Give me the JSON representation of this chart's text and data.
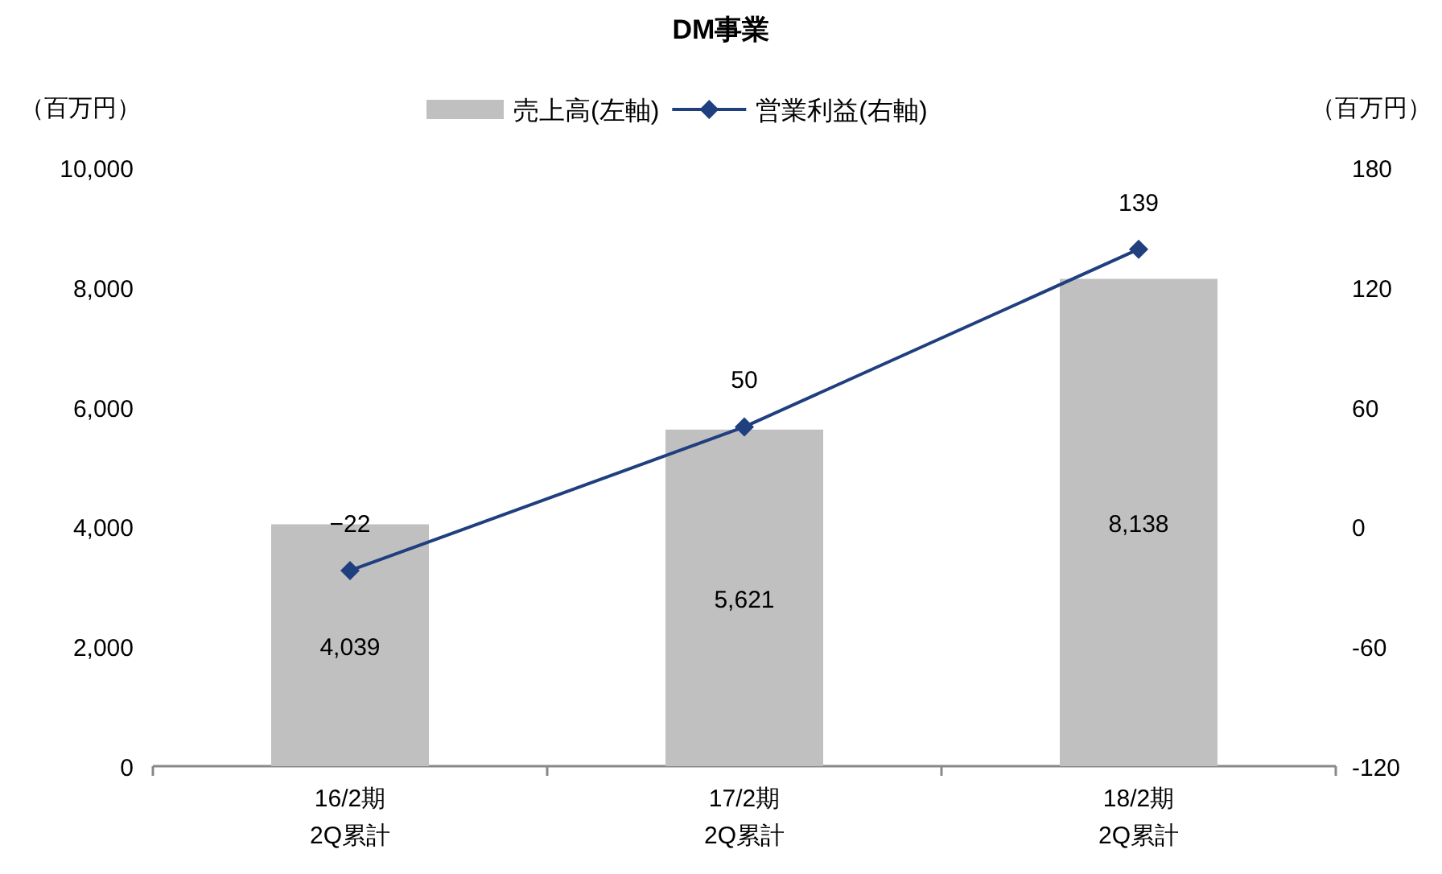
{
  "chart_data": {
    "type": "bar",
    "title": "DM事業",
    "ylabel": "（百万円）",
    "y2label": "（百万円）",
    "categories": [
      "16/2期\n2Q累計",
      "17/2期\n2Q累計",
      "18/2期\n2Q累計"
    ],
    "series": [
      {
        "name": "売上高(左軸)",
        "color": "#c0c0c0",
        "values": [
          4039,
          5621,
          8138
        ],
        "value_labels": [
          "4,039",
          "5,621",
          "8,138"
        ]
      },
      {
        "name": "営業利益(右軸)",
        "type": "line",
        "axis": "y2",
        "color": "#1f3f7f",
        "marker": "diamond",
        "values": [
          -22,
          50,
          139
        ],
        "value_labels": [
          "−22",
          "50",
          "139"
        ]
      }
    ],
    "ylim": [
      0,
      10000
    ],
    "yticks": [
      {
        "value": 0,
        "label": "0"
      },
      {
        "value": 2000,
        "label": "2,000"
      },
      {
        "value": 4000,
        "label": "4,000"
      },
      {
        "value": 6000,
        "label": "6,000"
      },
      {
        "value": 8000,
        "label": "8,000"
      },
      {
        "value": 10000,
        "label": "10,000"
      }
    ],
    "y2lim": [
      -120,
      180
    ],
    "y2ticks": [
      -120,
      -60,
      0,
      60,
      120,
      180
    ],
    "legend": "top",
    "grid": false
  }
}
